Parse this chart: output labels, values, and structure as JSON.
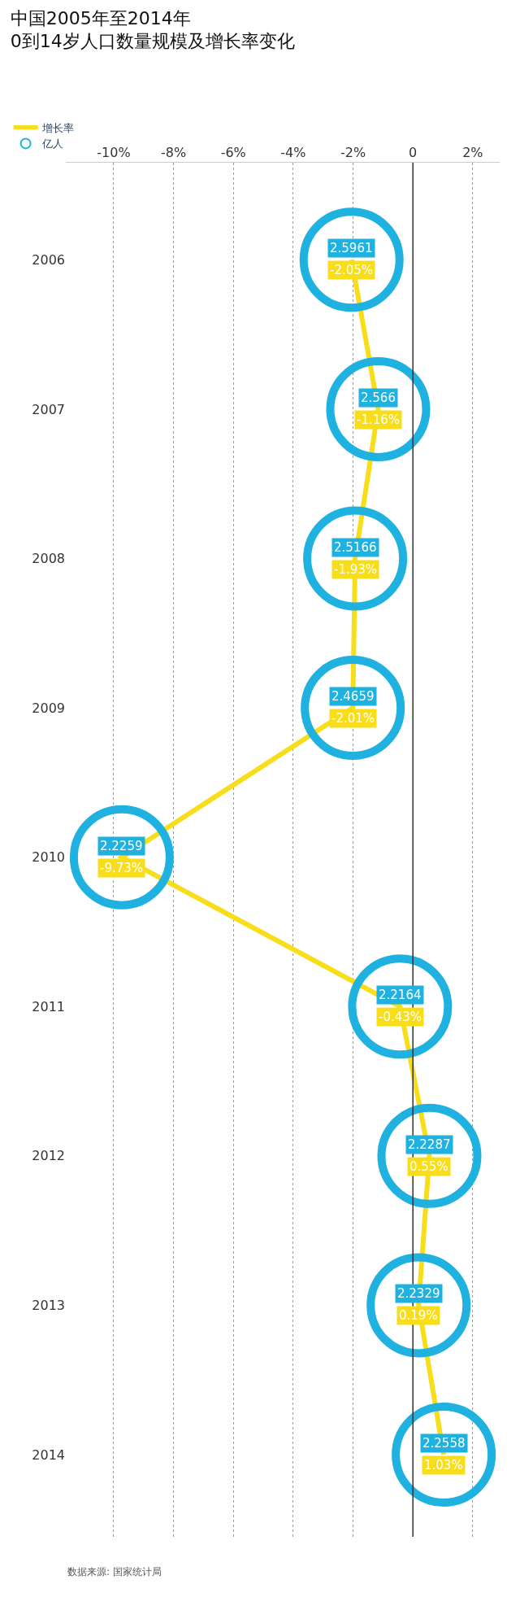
{
  "chart_data": {
    "type": "line",
    "title": "中国2005年至2014年\n0到14岁人口数量规模及增长率变化",
    "orientation": "horizontal",
    "categories": [
      "2006",
      "2007",
      "2008",
      "2009",
      "2010",
      "2011",
      "2012",
      "2013",
      "2014"
    ],
    "series": [
      {
        "name": "增长率",
        "color": "#f7dd1a",
        "marker": "none",
        "values": [
          -2.05,
          -1.16,
          -1.93,
          -2.01,
          -9.73,
          -0.43,
          0.55,
          0.19,
          1.03
        ],
        "value_labels": [
          "-2.05%",
          "-1.16%",
          "-1.93%",
          "-2.01%",
          "-9.73%",
          "-0.43%",
          "0.55%",
          "0.19%",
          "1.03%"
        ]
      },
      {
        "name": "亿人",
        "type": "scatter",
        "color": "#1fb1e0",
        "marker": "circle",
        "values": [
          -2.05,
          -1.16,
          -1.93,
          -2.01,
          -9.73,
          -0.43,
          0.55,
          0.19,
          1.03
        ]
      }
    ],
    "annotations": [
      {
        "text": "2.5961",
        "x": -2.05,
        "y": "2006"
      },
      {
        "text": "2.566",
        "x": -1.16,
        "y": "2007"
      },
      {
        "text": "2.5166",
        "x": -1.93,
        "y": "2008"
      },
      {
        "text": "2.4659",
        "x": -2.01,
        "y": "2009"
      },
      {
        "text": "2.2259",
        "x": -9.73,
        "y": "2010"
      },
      {
        "text": "2.2164",
        "x": -0.43,
        "y": "2011"
      },
      {
        "text": "2.2287",
        "x": 0.55,
        "y": "2012"
      },
      {
        "text": "2.2329",
        "x": 0.19,
        "y": "2013"
      },
      {
        "text": "2.2558",
        "x": 1.03,
        "y": "2014"
      },
      "数据来源: 国家统计局"
    ],
    "xlim": [
      -11.6,
      2.9
    ],
    "xticks": [
      {
        "value": -10,
        "label": "-10%"
      },
      {
        "value": -8,
        "label": "-8%"
      },
      {
        "value": -6,
        "label": "-6%"
      },
      {
        "value": -4,
        "label": "-4%"
      },
      {
        "value": -2,
        "label": "-2%"
      },
      {
        "value": 0,
        "label": "0"
      },
      {
        "value": 2,
        "label": "2%"
      }
    ],
    "ref_lines": [
      {
        "axis": "x",
        "value": 0,
        "color": "#333333",
        "line_style": "solid"
      }
    ],
    "grid": "x",
    "legend": "top left"
  }
}
